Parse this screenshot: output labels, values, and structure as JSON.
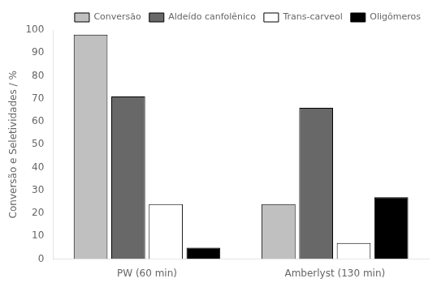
{
  "chart_data": {
    "type": "bar",
    "categories": [
      "PW (60 min)",
      "Amberlyst (130 min)"
    ],
    "series": [
      {
        "name": "Conversão",
        "color": "#c0c0c0",
        "values": [
          98,
          24
        ]
      },
      {
        "name": "Aldeído canfolênico",
        "color": "#686868",
        "values": [
          71,
          66
        ]
      },
      {
        "name": "Trans-carveol",
        "color": "#ffffff",
        "values": [
          24,
          7
        ]
      },
      {
        "name": "Oligômeros",
        "color": "#000000",
        "values": [
          5,
          27
        ]
      }
    ],
    "ylabel": "Conversão e Seletividades / %",
    "ylim": [
      0,
      100
    ],
    "yticks": [
      0,
      10,
      20,
      30,
      40,
      50,
      60,
      70,
      80,
      90,
      100
    ],
    "grid": false,
    "legend": "upper right"
  }
}
